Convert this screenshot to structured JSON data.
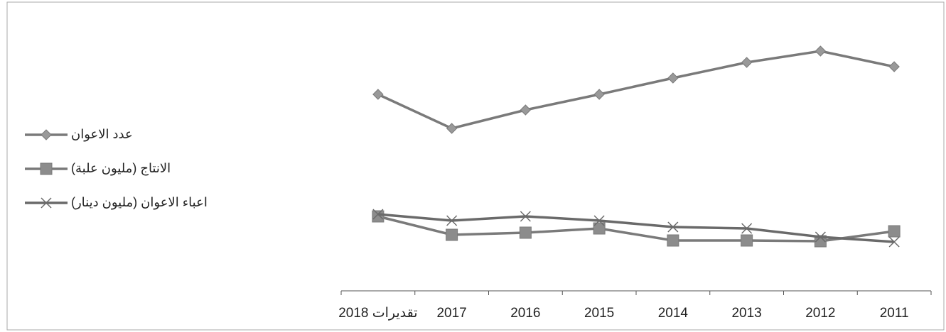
{
  "chart_data": {
    "type": "line",
    "categories": [
      "تقديرات 2018",
      "2017",
      "2016",
      "2015",
      "2014",
      "2013",
      "2012",
      "2011"
    ],
    "series": [
      {
        "name": "عدد الاعوان",
        "color": "#7a7a7a",
        "marker": "diamond",
        "values": [
          277,
          229,
          255,
          277,
          300,
          322,
          338,
          316
        ]
      },
      {
        "name": "الانتاج (مليون علبة)",
        "color": "#7a7a7a",
        "marker": "square",
        "values": [
          105,
          79,
          82,
          88,
          71,
          71,
          70,
          84
        ]
      },
      {
        "name": "اعباء الاعوان (مليون دينار)",
        "color": "#6a6a6a",
        "marker": "x",
        "values": [
          108,
          99,
          105,
          99,
          90,
          88,
          76,
          69
        ]
      }
    ],
    "ylim": [
      0,
      370
    ],
    "legend": "left"
  }
}
